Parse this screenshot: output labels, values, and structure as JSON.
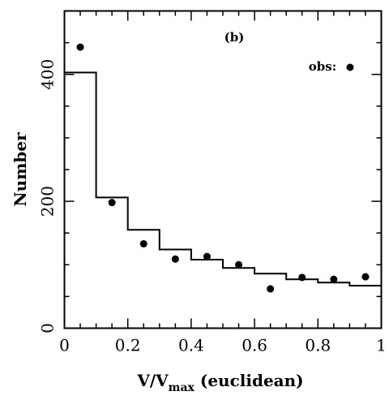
{
  "chart_data": {
    "type": "scatter",
    "xlabel": "V/V",
    "xlabel_sub": "max",
    "xlabel_suffix": " (euclidean)",
    "ylabel": "Number",
    "xlim": [
      0,
      1
    ],
    "ylim": [
      0,
      500
    ],
    "x_ticks": [
      0,
      0.2,
      0.4,
      0.6,
      0.8,
      1
    ],
    "x_tick_labels": [
      "0",
      "0.2",
      "0.4",
      "0.6",
      "0.8",
      "1"
    ],
    "y_ticks": [
      0,
      200,
      400
    ],
    "y_tick_labels": [
      "0",
      "200",
      "400"
    ],
    "annotation": "(b)",
    "legend": {
      "label": "obs:",
      "placement": "top-right"
    },
    "series": [
      {
        "kind": "step",
        "bins": [
          0,
          0.1,
          0.2,
          0.3,
          0.4,
          0.5,
          0.6,
          0.7,
          0.8,
          0.9,
          1.0
        ],
        "values": [
          403,
          206,
          155,
          124,
          108,
          95,
          86,
          77,
          72,
          67
        ]
      },
      {
        "name": "obs",
        "kind": "points",
        "x": [
          0.05,
          0.15,
          0.25,
          0.35,
          0.45,
          0.55,
          0.65,
          0.75,
          0.85,
          0.95
        ],
        "y": [
          443,
          198,
          133,
          109,
          113,
          100,
          62,
          80,
          77,
          81
        ]
      }
    ]
  }
}
